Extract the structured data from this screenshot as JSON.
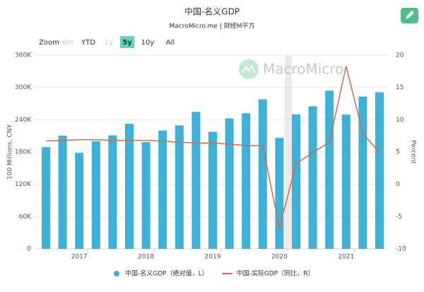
{
  "chart_data": {
    "type": "bar_line",
    "title": "中国-名义GDP",
    "subtitle": "MacroMicro.me | 财经M平方",
    "watermark": "MacroMicro",
    "zoom": {
      "label": "Zoom",
      "options": [
        "6m",
        "YTD",
        "1y",
        "5y",
        "10y",
        "All"
      ],
      "disabled": [
        "6m",
        "1y"
      ],
      "selected": "5y"
    },
    "y_label": "100 Millions, CNY",
    "y2_label": "Percent",
    "categories": [
      null,
      null,
      "2017",
      null,
      null,
      null,
      "2018",
      null,
      null,
      null,
      "2019",
      null,
      null,
      null,
      "2020",
      null,
      null,
      null,
      "2021",
      null,
      null
    ],
    "series": [
      {
        "name": "中国-名义GDP（绝对值，L）",
        "type": "bar",
        "color": "#3eb1d7",
        "values": [
          189000,
          210500,
          178500,
          200000,
          211000,
          232500,
          198500,
          220000,
          229500,
          254500,
          217500,
          242500,
          252000,
          278000,
          206500,
          250000,
          265000,
          294000,
          249500,
          283000,
          291000
        ]
      },
      {
        "name": "中国-实际GDP（同比，R）",
        "type": "line",
        "axis": "y2",
        "color": "#d9694a",
        "values": [
          6.7,
          6.8,
          6.9,
          6.9,
          6.8,
          6.8,
          6.8,
          6.7,
          6.5,
          6.4,
          6.4,
          6.2,
          6.0,
          6.0,
          -6.8,
          3.2,
          4.9,
          6.5,
          18.3,
          7.9,
          4.9
        ]
      }
    ],
    "ylim": [
      0,
      360000
    ],
    "yticks": [
      {
        "value": 0,
        "label": "0"
      },
      {
        "value": 60000,
        "label": "60K"
      },
      {
        "value": 120000,
        "label": "120K"
      },
      {
        "value": 180000,
        "label": "180K"
      },
      {
        "value": 240000,
        "label": "240K"
      },
      {
        "value": 300000,
        "label": "300K"
      },
      {
        "value": 360000,
        "label": "360K"
      }
    ],
    "y2lim": [
      -10,
      20
    ],
    "y2ticks": [
      -10,
      -5,
      0,
      5,
      10,
      15,
      20
    ],
    "grid": true,
    "legend": "bottom"
  }
}
